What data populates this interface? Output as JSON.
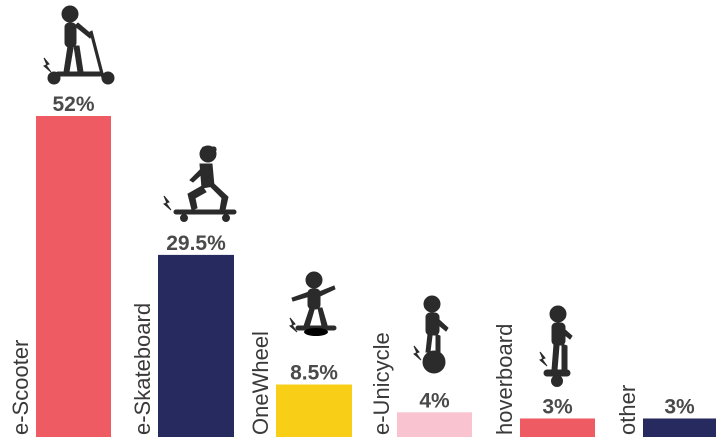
{
  "chart_data": {
    "type": "bar",
    "title": "",
    "xlabel": "",
    "ylabel": "",
    "ylim": [
      0,
      56
    ],
    "grid": false,
    "legend": "none",
    "categories": [
      "e-Scooter",
      "e-Skateboard",
      "OneWheel",
      "e-Unicycle",
      "hoverboard",
      "other"
    ],
    "values": [
      52,
      29.5,
      8.5,
      4,
      3,
      3
    ],
    "value_labels": [
      "52%",
      "29.5%",
      "8.5%",
      "4%",
      "3%",
      "3%"
    ],
    "colors": [
      "#ef5b63",
      "#262a5e",
      "#f8cf16",
      "#f9c4cf",
      "#ef5b63",
      "#262a5e"
    ],
    "icons": [
      "person-scooter-icon",
      "person-skateboard-icon",
      "person-onewheel-icon",
      "person-unicycle-icon",
      "person-hoverboard-icon",
      ""
    ]
  }
}
